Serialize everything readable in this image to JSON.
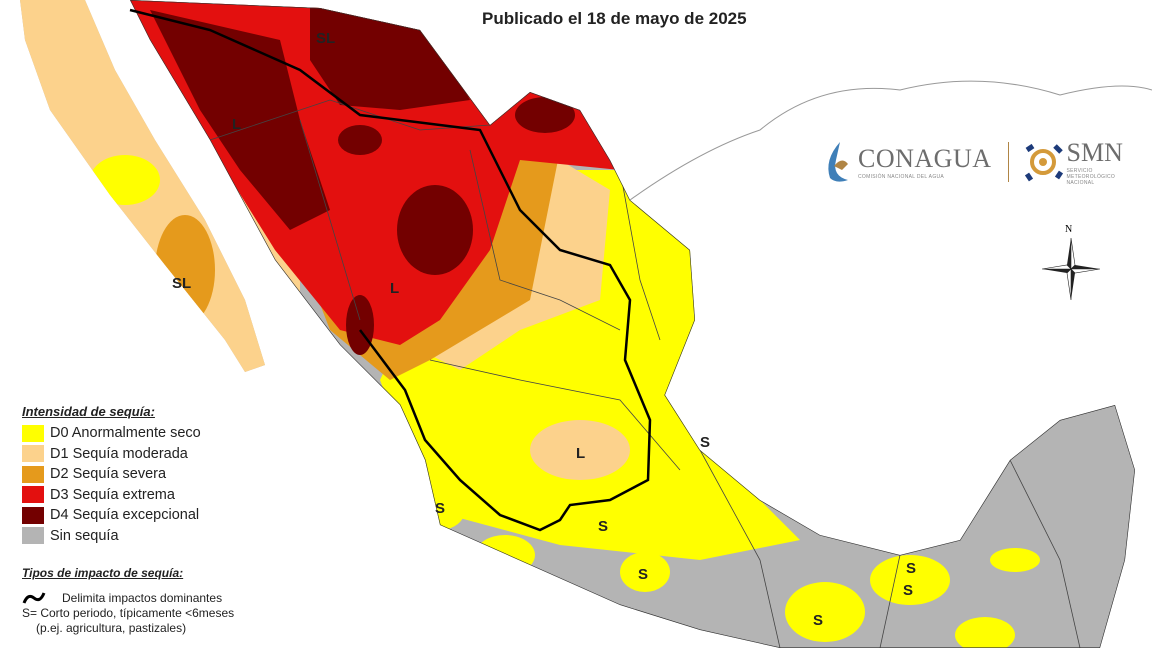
{
  "header": {
    "subtitle": "Publicado el 18 de mayo de 2025"
  },
  "logos": {
    "conagua": "CONAGUA",
    "conagua_sub": "COMISIÓN NACIONAL DEL AGUA",
    "smn": "SMN",
    "smn_sub": "SERVICIO METEOROLÓGICO NACIONAL"
  },
  "compass": {
    "north": "N"
  },
  "legend": {
    "title": "Intensidad de sequía:",
    "items": [
      {
        "label": "D0 Anormalmente seco",
        "color": "#ffff00"
      },
      {
        "label": "D1 Sequía moderada",
        "color": "#fcd28c"
      },
      {
        "label": "D2 Sequía severa",
        "color": "#e59a1c"
      },
      {
        "label": "D3 Sequía extrema",
        "color": "#e3100f"
      },
      {
        "label": "D4 Sequía excepcional",
        "color": "#730000"
      },
      {
        "label": "Sin sequía",
        "color": "#b4b4b4"
      }
    ]
  },
  "impact": {
    "title": "Tipos de impacto de sequía:",
    "line_label": "Delimita impactos dominantes",
    "s_label": "S= Corto periodo, típicamente <6meses",
    "s_examples": "(p.ej. agricultura, pastizales)"
  },
  "map_labels": {
    "sl_north": "SL",
    "l_sonora": "L",
    "sl_baja": "SL",
    "l_chihuahua": "L",
    "l_center": "L",
    "s": "S"
  }
}
